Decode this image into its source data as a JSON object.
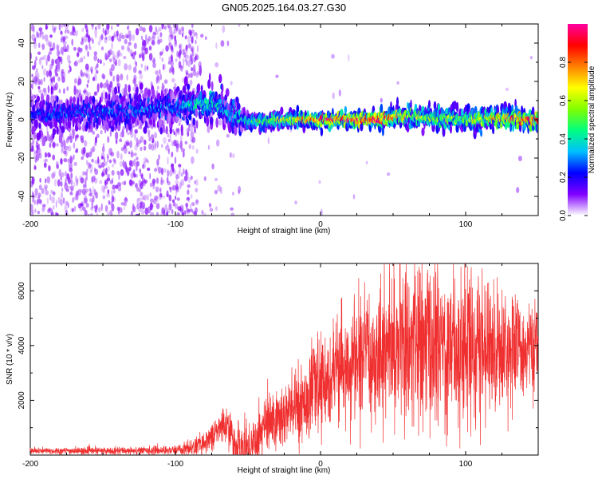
{
  "title": "GN05.2025.164.03.27.G30",
  "chart_data": [
    {
      "type": "heatmap",
      "xlabel": "Height of straight line (km)",
      "ylabel": "Frequency (Hz)",
      "xlim": [
        -200,
        150
      ],
      "ylim": [
        -50,
        50
      ],
      "x_ticks": [
        -200,
        -100,
        0,
        100
      ],
      "x_tick_labels": [
        "-200",
        "-100",
        "0",
        "100"
      ],
      "y_ticks": [
        -40,
        -20,
        0,
        20,
        40
      ],
      "y_tick_labels": [
        "-40",
        "-20",
        "0",
        "20",
        "40"
      ],
      "colorbar": {
        "label": "Normalized spectral amplitude",
        "range": [
          0,
          1
        ],
        "ticks": [
          0.0,
          0.2,
          0.4,
          0.6,
          0.8
        ],
        "tick_labels": [
          "0.0",
          "0.2",
          "0.4",
          "0.6",
          "0.8"
        ],
        "colormap": [
          "#ffffff",
          "#8000ff",
          "#0000ff",
          "#00bfff",
          "#00ff80",
          "#80ff00",
          "#ffff00",
          "#ff8000",
          "#ff0000",
          "#ff00a0"
        ]
      },
      "ridge_center_hz": [
        {
          "x": -200,
          "f": 3
        },
        {
          "x": -150,
          "f": 4
        },
        {
          "x": -100,
          "f": 6
        },
        {
          "x": -85,
          "f": 9
        },
        {
          "x": -70,
          "f": 7
        },
        {
          "x": -55,
          "f": 0
        },
        {
          "x": -40,
          "f": -1
        },
        {
          "x": -20,
          "f": 0
        },
        {
          "x": 0,
          "f": 0
        },
        {
          "x": 20,
          "f": 0
        },
        {
          "x": 40,
          "f": 0
        },
        {
          "x": 60,
          "f": 2
        },
        {
          "x": 80,
          "f": 1
        },
        {
          "x": 100,
          "f": 0
        },
        {
          "x": 120,
          "f": 1
        },
        {
          "x": 150,
          "f": 0
        }
      ],
      "ridge_peak_amplitude": [
        {
          "x": -200,
          "a": 0.25
        },
        {
          "x": -100,
          "a": 0.3
        },
        {
          "x": -85,
          "a": 0.45
        },
        {
          "x": -60,
          "a": 0.35
        },
        {
          "x": -40,
          "a": 0.5
        },
        {
          "x": -20,
          "a": 0.65
        },
        {
          "x": 0,
          "a": 0.85
        },
        {
          "x": 40,
          "a": 0.95
        },
        {
          "x": 60,
          "a": 0.6
        },
        {
          "x": 100,
          "a": 0.55
        },
        {
          "x": 130,
          "a": 0.8
        },
        {
          "x": 150,
          "a": 0.85
        }
      ]
    },
    {
      "type": "line",
      "xlabel": "Height of straight line (km)",
      "ylabel": "SNR (10 * v/v)",
      "xlim": [
        -200,
        150
      ],
      "ylim": [
        0,
        7000
      ],
      "x_ticks": [
        -200,
        -100,
        0,
        100
      ],
      "x_tick_labels": [
        "-200",
        "-100",
        "0",
        "100"
      ],
      "y_ticks": [
        2000,
        4000,
        6000
      ],
      "y_tick_labels": [
        "2000",
        "4000",
        "6000"
      ],
      "series": [
        {
          "color": "#f03030",
          "mean": [
            {
              "x": -200,
              "y": 150
            },
            {
              "x": -150,
              "y": 150
            },
            {
              "x": -100,
              "y": 180
            },
            {
              "x": -85,
              "y": 300
            },
            {
              "x": -72,
              "y": 800
            },
            {
              "x": -65,
              "y": 1200
            },
            {
              "x": -58,
              "y": 300
            },
            {
              "x": -50,
              "y": 200
            },
            {
              "x": -40,
              "y": 1000
            },
            {
              "x": -20,
              "y": 1600
            },
            {
              "x": 0,
              "y": 2600
            },
            {
              "x": 20,
              "y": 3300
            },
            {
              "x": 40,
              "y": 3800
            },
            {
              "x": 60,
              "y": 4100
            },
            {
              "x": 80,
              "y": 4000
            },
            {
              "x": 100,
              "y": 4100
            },
            {
              "x": 120,
              "y": 3900
            },
            {
              "x": 150,
              "y": 3900
            }
          ],
          "spread": [
            {
              "x": -200,
              "y": 60
            },
            {
              "x": -100,
              "y": 80
            },
            {
              "x": -75,
              "y": 250
            },
            {
              "x": -40,
              "y": 600
            },
            {
              "x": 0,
              "y": 800
            },
            {
              "x": 40,
              "y": 1200
            },
            {
              "x": 70,
              "y": 1500
            },
            {
              "x": 100,
              "y": 1500
            },
            {
              "x": 150,
              "y": 700
            }
          ]
        }
      ]
    }
  ]
}
